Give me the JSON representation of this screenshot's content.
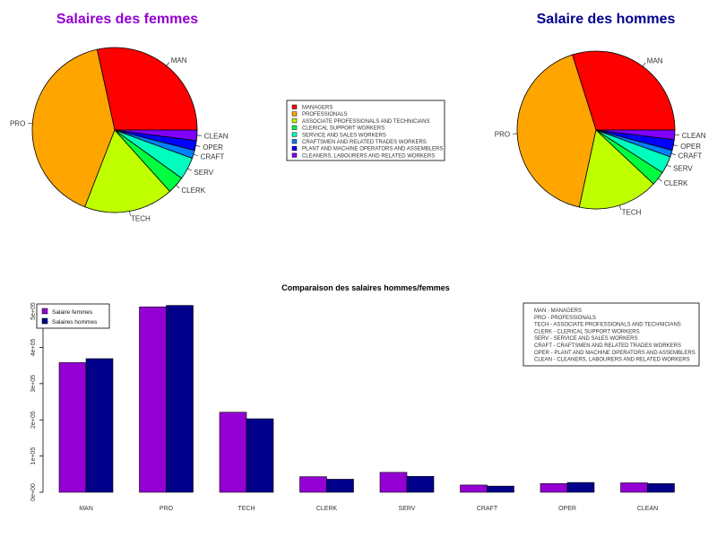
{
  "charts": {
    "female_title": "Salaires des femmes",
    "male_title": "Salaire des hommes",
    "bar_title": "Comparaison des salaires hommes/femmes"
  },
  "category_legend": [
    "MANAGERS",
    "PROFESSIONALS",
    "ASSOCIATE PROFESSIONALS AND TECHNICIANS",
    "CLERICAL SUPPORT WORKERS",
    "SERVICE AND SALES WORKERS",
    "CRAFTSMEN AND RELATED TRADES WORKERS",
    "PLANT AND MACHINE OPERATORS AND ASSEMBLERS",
    "CLEANERS, LABOURERS AND RELATED WORKERS"
  ],
  "abbrev_legend": [
    "MAN - MANAGERS",
    "PRO - PROFESSIONALS",
    "TECH - ASSOCIATE PROFESSIONALS AND TECHNICIANS",
    "CLERK - CLERICAL SUPPORT WORKERS",
    "SERV - SERVICE AND SALES WORKERS",
    "CRAFT - CRAFTSMEN AND RELATED TRADES WORKERS",
    "OPER - PLANT AND MACHINE OPERATORS AND ASSEMBLERS",
    "CLEAN - CLEANERS, LABOURERS AND RELATED WORKERS"
  ],
  "colors": {
    "slices": [
      "#ff0000",
      "#ffa500",
      "#bfff00",
      "#00ff40",
      "#00ffbf",
      "#0080ff",
      "#0000ff",
      "#8000ff"
    ],
    "female_bar": "#9400d3",
    "male_bar": "#00008b"
  },
  "chart_data": [
    {
      "type": "pie",
      "title": "Salaires des femmes",
      "categories": [
        "MAN",
        "PRO",
        "TECH",
        "CLERK",
        "SERV",
        "CRAFT",
        "OPER",
        "CLEAN"
      ],
      "values": [
        358000,
        512000,
        221000,
        43000,
        55000,
        20000,
        24000,
        26000
      ]
    },
    {
      "type": "pie",
      "title": "Salaire des hommes",
      "categories": [
        "MAN",
        "PRO",
        "TECH",
        "CLERK",
        "SERV",
        "CRAFT",
        "OPER",
        "CLEAN"
      ],
      "values": [
        369000,
        516000,
        203000,
        36000,
        44000,
        17000,
        27000,
        24000
      ]
    },
    {
      "type": "bar",
      "title": "Comparaison des salaires hommes/femmes",
      "categories": [
        "MAN",
        "PRO",
        "TECH",
        "CLERK",
        "SERV",
        "CRAFT",
        "OPER",
        "CLEAN"
      ],
      "series": [
        {
          "name": "Salaire femmes",
          "values": [
            358000,
            512000,
            221000,
            43000,
            55000,
            20000,
            24000,
            26000
          ]
        },
        {
          "name": "Salaires hommes",
          "values": [
            369000,
            516000,
            203000,
            36000,
            44000,
            17000,
            27000,
            24000
          ]
        }
      ],
      "yticks": [
        "0e+00",
        "1e+05",
        "2e+05",
        "3e+05",
        "4e+05",
        "5e+05"
      ],
      "ylim": [
        0,
        520000
      ],
      "legend_position": "top-left",
      "grid": false
    }
  ]
}
